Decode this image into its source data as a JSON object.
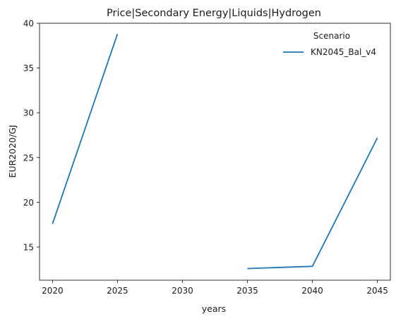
{
  "chart_data": {
    "type": "line",
    "title": "Price|Secondary Energy|Liquids|Hydrogen",
    "xlabel": "years",
    "ylabel": "EUR2020/GJ",
    "x": [
      2020,
      2025,
      2030,
      2035,
      2040,
      2045
    ],
    "xlim": [
      2019,
      2046
    ],
    "ylim": [
      11.3,
      40
    ],
    "xticks": [
      "2020",
      "2025",
      "2030",
      "2035",
      "2040",
      "2045"
    ],
    "yticks": [
      "15",
      "20",
      "25",
      "30",
      "35",
      "40"
    ],
    "grid": false,
    "legend": {
      "title": "Scenario",
      "placement": "top-right"
    },
    "series": [
      {
        "name": "KN2045_Bal_v4",
        "color": "#1f77b4",
        "values": [
          17.6,
          38.8,
          null,
          12.6,
          12.85,
          27.2
        ]
      }
    ]
  }
}
